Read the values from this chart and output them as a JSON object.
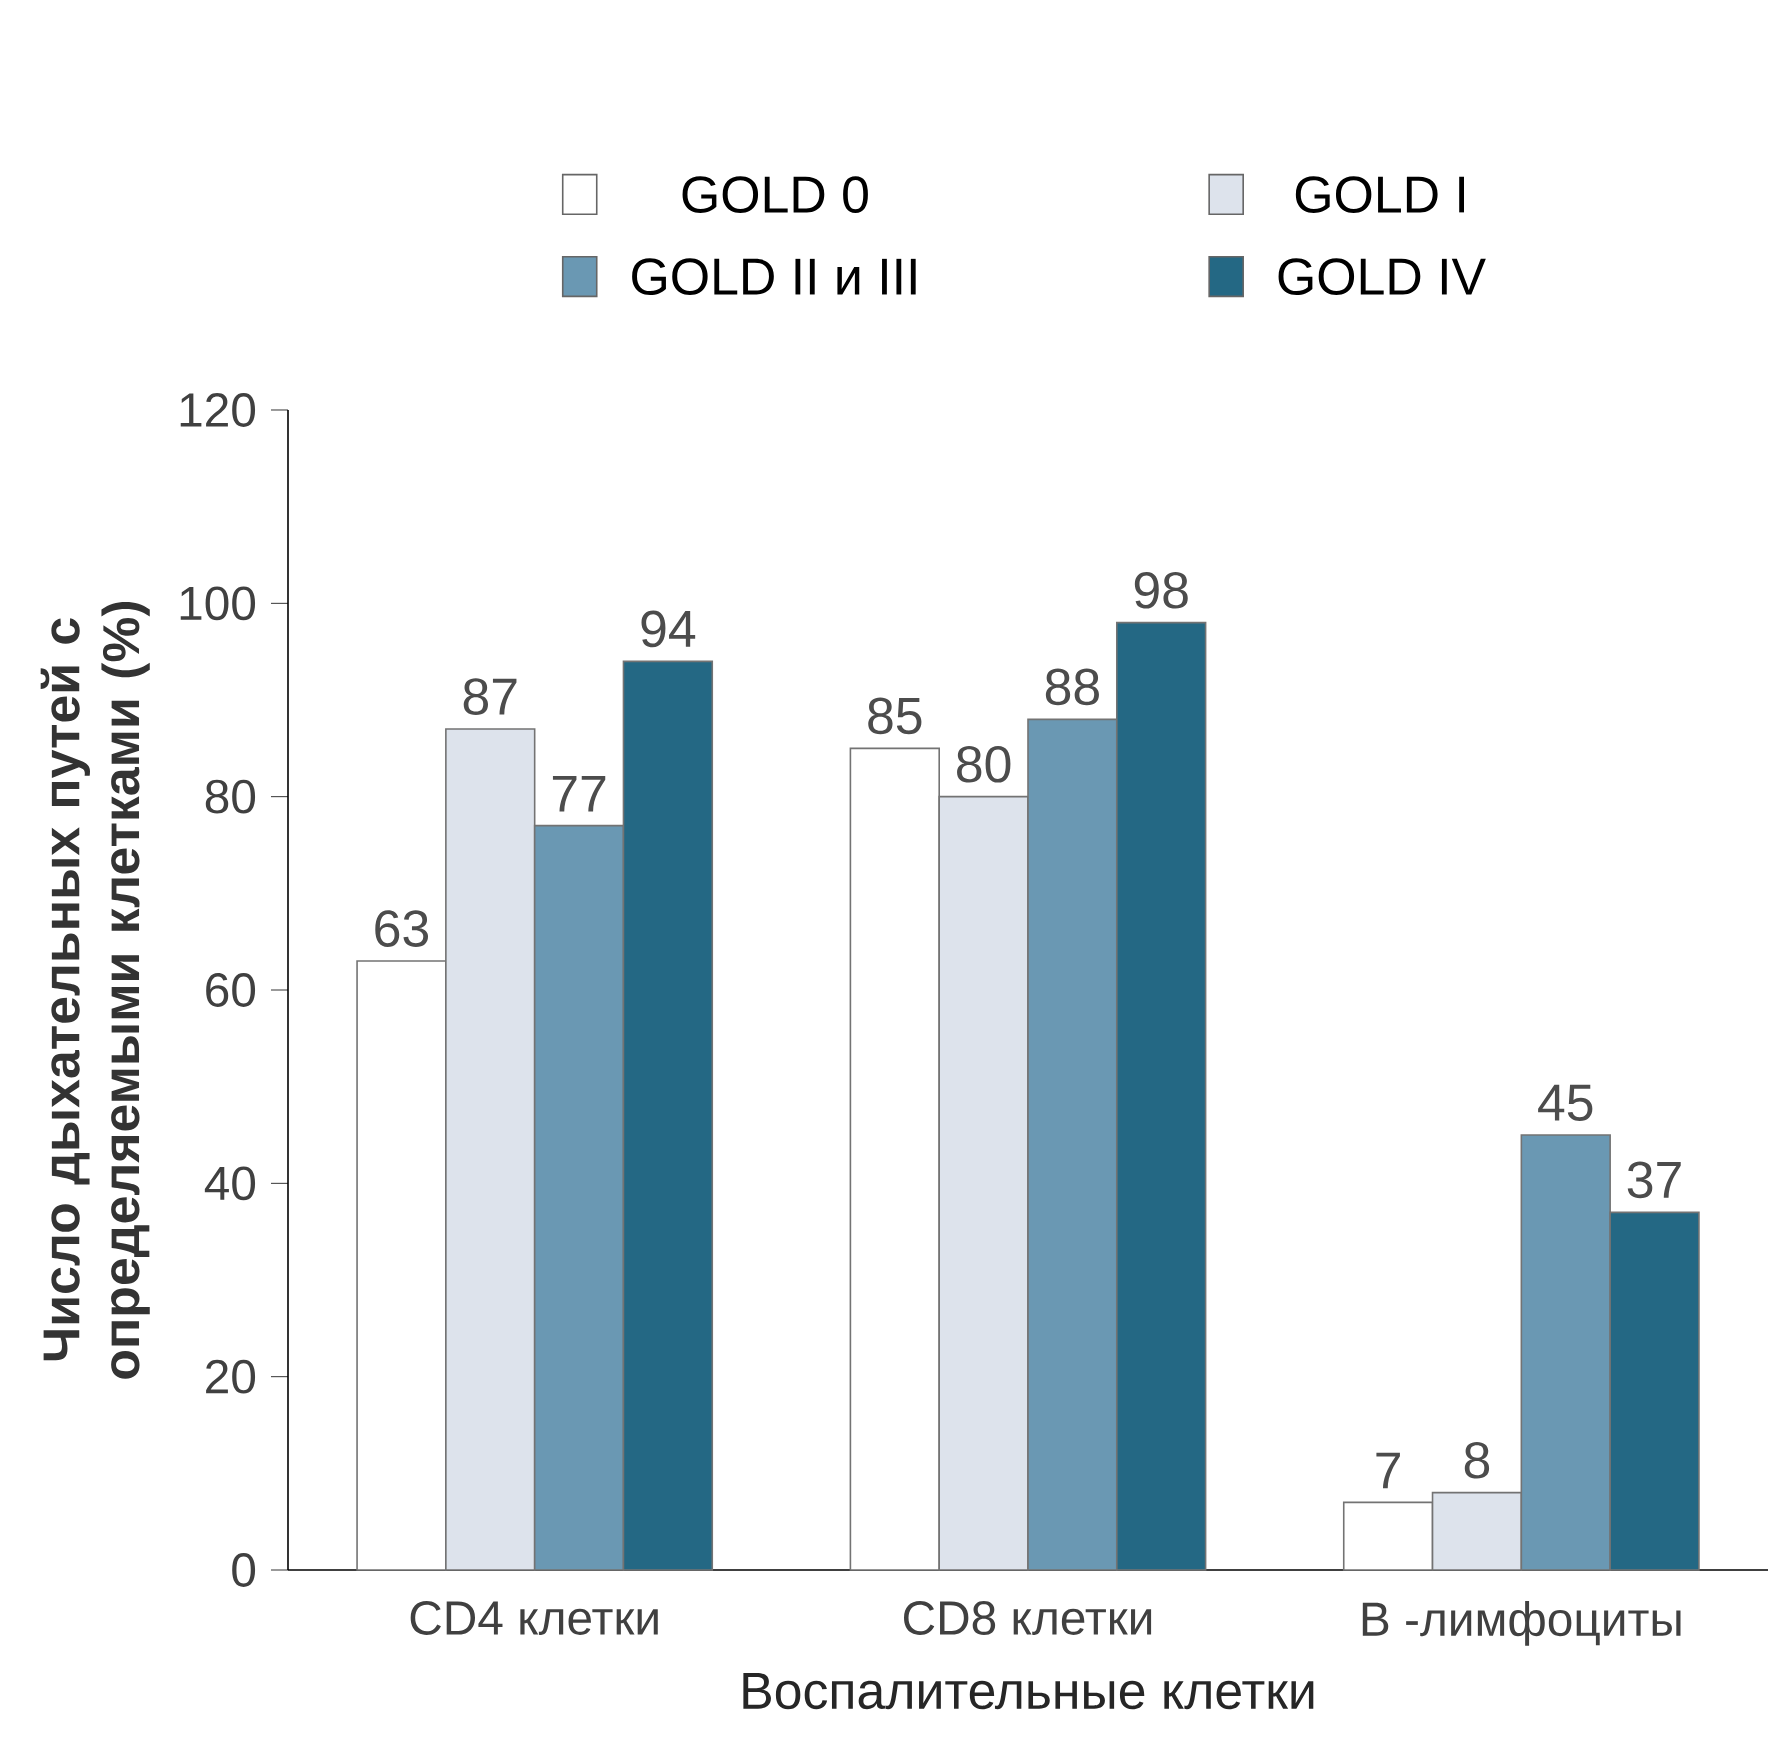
{
  "chart_data": {
    "type": "bar",
    "xlabel": "Воспалительные клетки",
    "ylabel": "Число дыхательных путей с определяемыми клетками (%)",
    "categories": [
      "CD4 клетки",
      "CD8 клетки",
      "В -лимфоциты"
    ],
    "series": [
      {
        "name": "GOLD  0",
        "color": "#ffffff",
        "values": [
          63,
          85,
          7
        ]
      },
      {
        "name": "GOLD I",
        "color": "#dde3ec",
        "values": [
          87,
          80,
          8
        ]
      },
      {
        "name": "GOLD  II и III",
        "color": "#6a98b3",
        "values": [
          77,
          88,
          45
        ]
      },
      {
        "name": "GOLD IV",
        "color": "#246884",
        "values": [
          94,
          98,
          37
        ]
      }
    ],
    "ylim": [
      0,
      120
    ],
    "yticks": [
      0,
      20,
      40,
      60,
      80,
      100,
      120
    ],
    "data_labels": true,
    "legend": "top",
    "grid": false
  }
}
